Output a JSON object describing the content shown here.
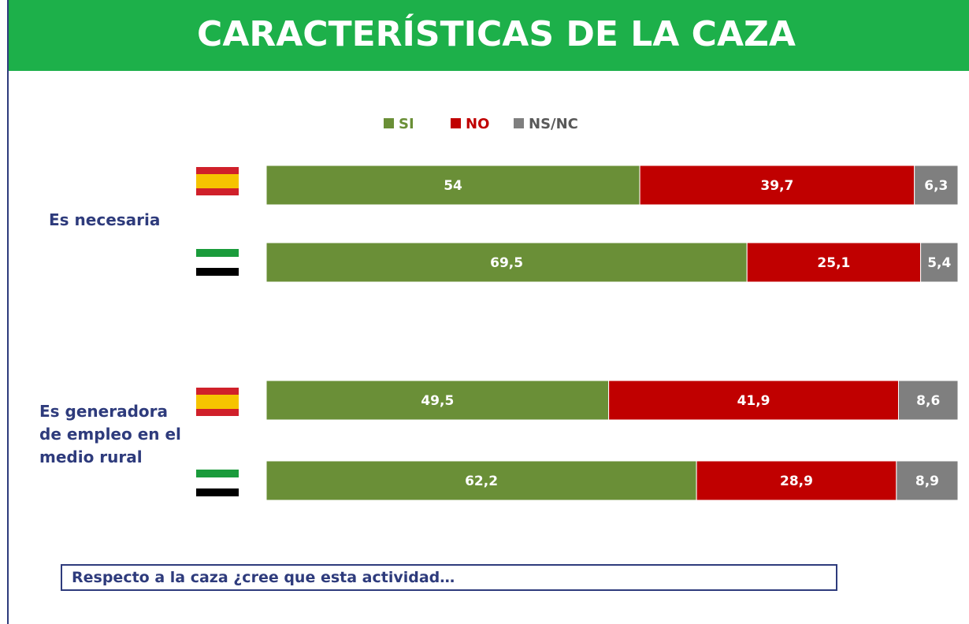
{
  "chart_data": {
    "type": "stacked_bar_horizontal",
    "title": "CARACTERÍSTICAS DE LA CAZA",
    "categories": [
      null,
      null,
      null,
      null
    ],
    "group_labels": [
      "Es necesaria",
      "Es generadora de empleo en el medio rural"
    ],
    "series": [
      {
        "name": "SI",
        "color": "#6a8f37",
        "values": [
          54,
          69.5,
          49.5,
          62.2
        ],
        "value_labels": [
          "54",
          "69,5",
          "49,5",
          "62,2"
        ]
      },
      {
        "name": "NO",
        "color": "#c00000",
        "values": [
          39.7,
          25.1,
          41.9,
          28.9
        ],
        "value_labels": [
          "39,7",
          "25,1",
          "41,9",
          "28,9"
        ]
      },
      {
        "name": "NS/NC",
        "color": "#7f7f7f",
        "values": [
          6.3,
          5.4,
          8.6,
          8.9
        ],
        "value_labels": [
          "6,3",
          "5,4",
          "8,6",
          "8,9"
        ]
      }
    ],
    "xlim": [
      0,
      100
    ],
    "legend": "top",
    "footnote": "Respecto a la caza ¿cree que esta actividad…"
  }
}
